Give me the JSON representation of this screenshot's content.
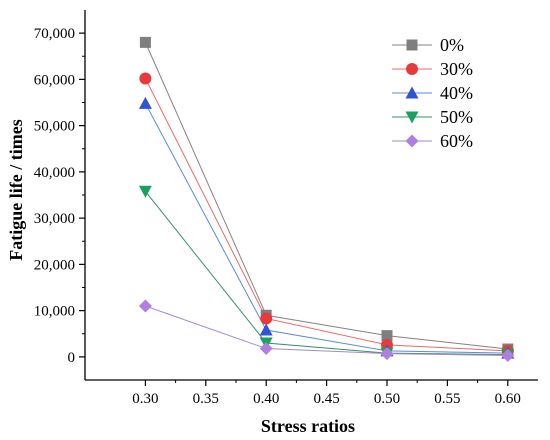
{
  "chart_data": {
    "type": "line",
    "xlabel": "Stress ratios",
    "ylabel": "Fatigue life / times",
    "xlim": [
      0.25,
      0.625
    ],
    "ylim": [
      -5000,
      75000
    ],
    "x_ticks": [
      0.3,
      0.35,
      0.4,
      0.45,
      0.5,
      0.55,
      0.6
    ],
    "x_tick_labels": [
      "0.30",
      "0.35",
      "0.40",
      "0.45",
      "0.50",
      "0.55",
      "0.60"
    ],
    "y_ticks": [
      0,
      10000,
      20000,
      30000,
      40000,
      50000,
      60000,
      70000
    ],
    "y_tick_labels": [
      "0",
      "10,000",
      "20,000",
      "30,000",
      "40,000",
      "50,000",
      "60,000",
      "70,000"
    ],
    "grid": false,
    "legend_position": "top-right",
    "x": [
      0.3,
      0.4,
      0.5,
      0.6
    ],
    "series": [
      {
        "name": "0%",
        "marker": "square",
        "color": "#7f7f7f",
        "line_color": "#8c7f7f",
        "values": [
          68000,
          9000,
          4600,
          1700
        ]
      },
      {
        "name": "30%",
        "marker": "circle",
        "color": "#e83a3a",
        "line_color": "#e86a6a",
        "values": [
          60200,
          8300,
          2600,
          1300
        ]
      },
      {
        "name": "40%",
        "marker": "triangle-up",
        "color": "#2f55d4",
        "line_color": "#5a8bd8",
        "values": [
          54800,
          5800,
          1300,
          800
        ]
      },
      {
        "name": "50%",
        "marker": "triangle-down",
        "color": "#1aa15f",
        "line_color": "#3a8f6a",
        "values": [
          35800,
          3000,
          800,
          500
        ]
      },
      {
        "name": "60%",
        "marker": "diamond",
        "color": "#b07fe0",
        "line_color": "#a58ac8",
        "values": [
          11000,
          1800,
          700,
          300
        ]
      }
    ]
  }
}
